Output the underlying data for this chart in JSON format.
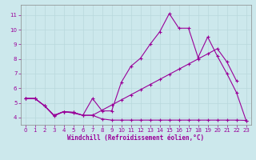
{
  "bg_color": "#cce8ec",
  "line_color": "#990099",
  "grid_color": "#b8d8dc",
  "xlabel": "Windchill (Refroidissement éolien,°C)",
  "yticks": [
    4,
    5,
    6,
    7,
    8,
    9,
    10,
    11
  ],
  "xticks": [
    0,
    1,
    2,
    3,
    4,
    5,
    6,
    7,
    8,
    9,
    10,
    11,
    12,
    13,
    14,
    15,
    16,
    17,
    18,
    19,
    20,
    21,
    22,
    23
  ],
  "xlim": [
    -0.5,
    23.5
  ],
  "ylim": [
    3.5,
    11.7
  ],
  "curve1_x": [
    0,
    1,
    2,
    3,
    4,
    5,
    6,
    7,
    8,
    9,
    10,
    11,
    12,
    13,
    14,
    15,
    16,
    17,
    18,
    19,
    20,
    21,
    22,
    23
  ],
  "curve1_y": [
    5.3,
    5.3,
    4.8,
    4.1,
    4.4,
    4.3,
    4.15,
    5.3,
    4.45,
    4.45,
    6.4,
    7.5,
    8.05,
    9.0,
    9.85,
    11.1,
    10.1,
    10.1,
    8.1,
    9.5,
    8.2,
    7.0,
    5.7,
    3.8
  ],
  "curve2_x": [
    0,
    1,
    2,
    3,
    4,
    5,
    6,
    7,
    8,
    9,
    10,
    11,
    12,
    13,
    14,
    15,
    16,
    17,
    18,
    19,
    20,
    21,
    22,
    23
  ],
  "curve2_y": [
    5.3,
    5.3,
    4.8,
    4.15,
    4.4,
    4.35,
    4.15,
    4.15,
    4.5,
    4.85,
    5.2,
    5.55,
    5.9,
    6.25,
    6.6,
    6.95,
    7.3,
    7.65,
    8.0,
    8.35,
    8.7,
    7.8,
    6.5,
    null
  ],
  "curve3_x": [
    0,
    1,
    2,
    3,
    4,
    5,
    6,
    7,
    8,
    9,
    10,
    11,
    12,
    13,
    14,
    15,
    16,
    17,
    18,
    19,
    20,
    21,
    22,
    23
  ],
  "curve3_y": [
    5.3,
    5.3,
    4.8,
    4.15,
    4.4,
    4.35,
    4.15,
    4.15,
    3.9,
    3.82,
    3.82,
    3.82,
    3.82,
    3.82,
    3.82,
    3.82,
    3.82,
    3.82,
    3.82,
    3.82,
    3.82,
    3.82,
    3.82,
    3.8
  ]
}
